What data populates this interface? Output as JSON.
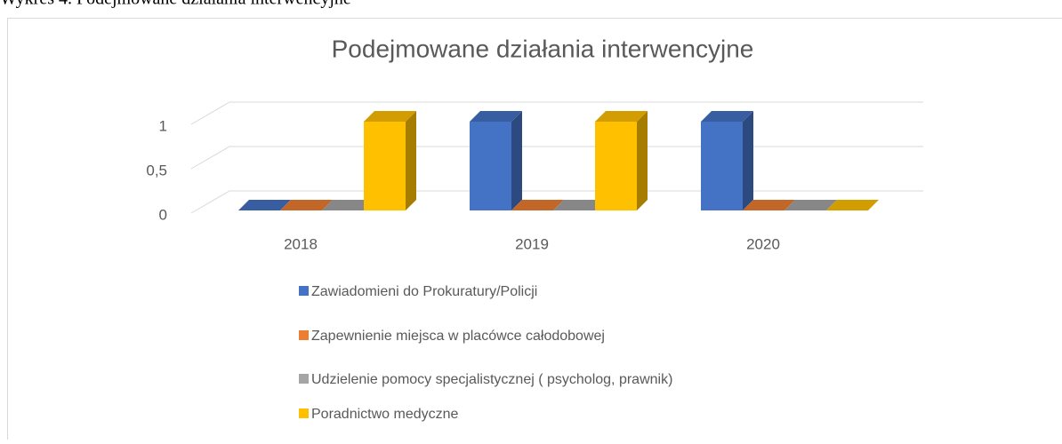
{
  "caption": "Wykres 4. Podejmowane działania interwencyjne",
  "chart_data": {
    "type": "bar3d",
    "title": "Podejmowane działania interwencyjne",
    "categories": [
      "2018",
      "2019",
      "2020"
    ],
    "series": [
      {
        "name": "Zawiadomieni do Prokuratury/Policji",
        "color": "#4472c4",
        "values": [
          0,
          1,
          1
        ]
      },
      {
        "name": "Zapewnienie miejsca w placówce całodobowej",
        "color": "#ed7d31",
        "values": [
          0,
          0,
          0
        ]
      },
      {
        "name": "Udzielenie pomocy specjalistycznej ( psycholog, prawnik)",
        "color": "#a5a5a5",
        "values": [
          0,
          0,
          0
        ]
      },
      {
        "name": "Poradnictwo medyczne",
        "color": "#ffc000",
        "values": [
          1,
          1,
          0
        ]
      }
    ],
    "ylim": [
      0,
      1
    ],
    "yticks": [
      0,
      {
        "value": 0.5,
        "label": "0,5"
      },
      1
    ],
    "grid": true,
    "legend": "bottom"
  }
}
